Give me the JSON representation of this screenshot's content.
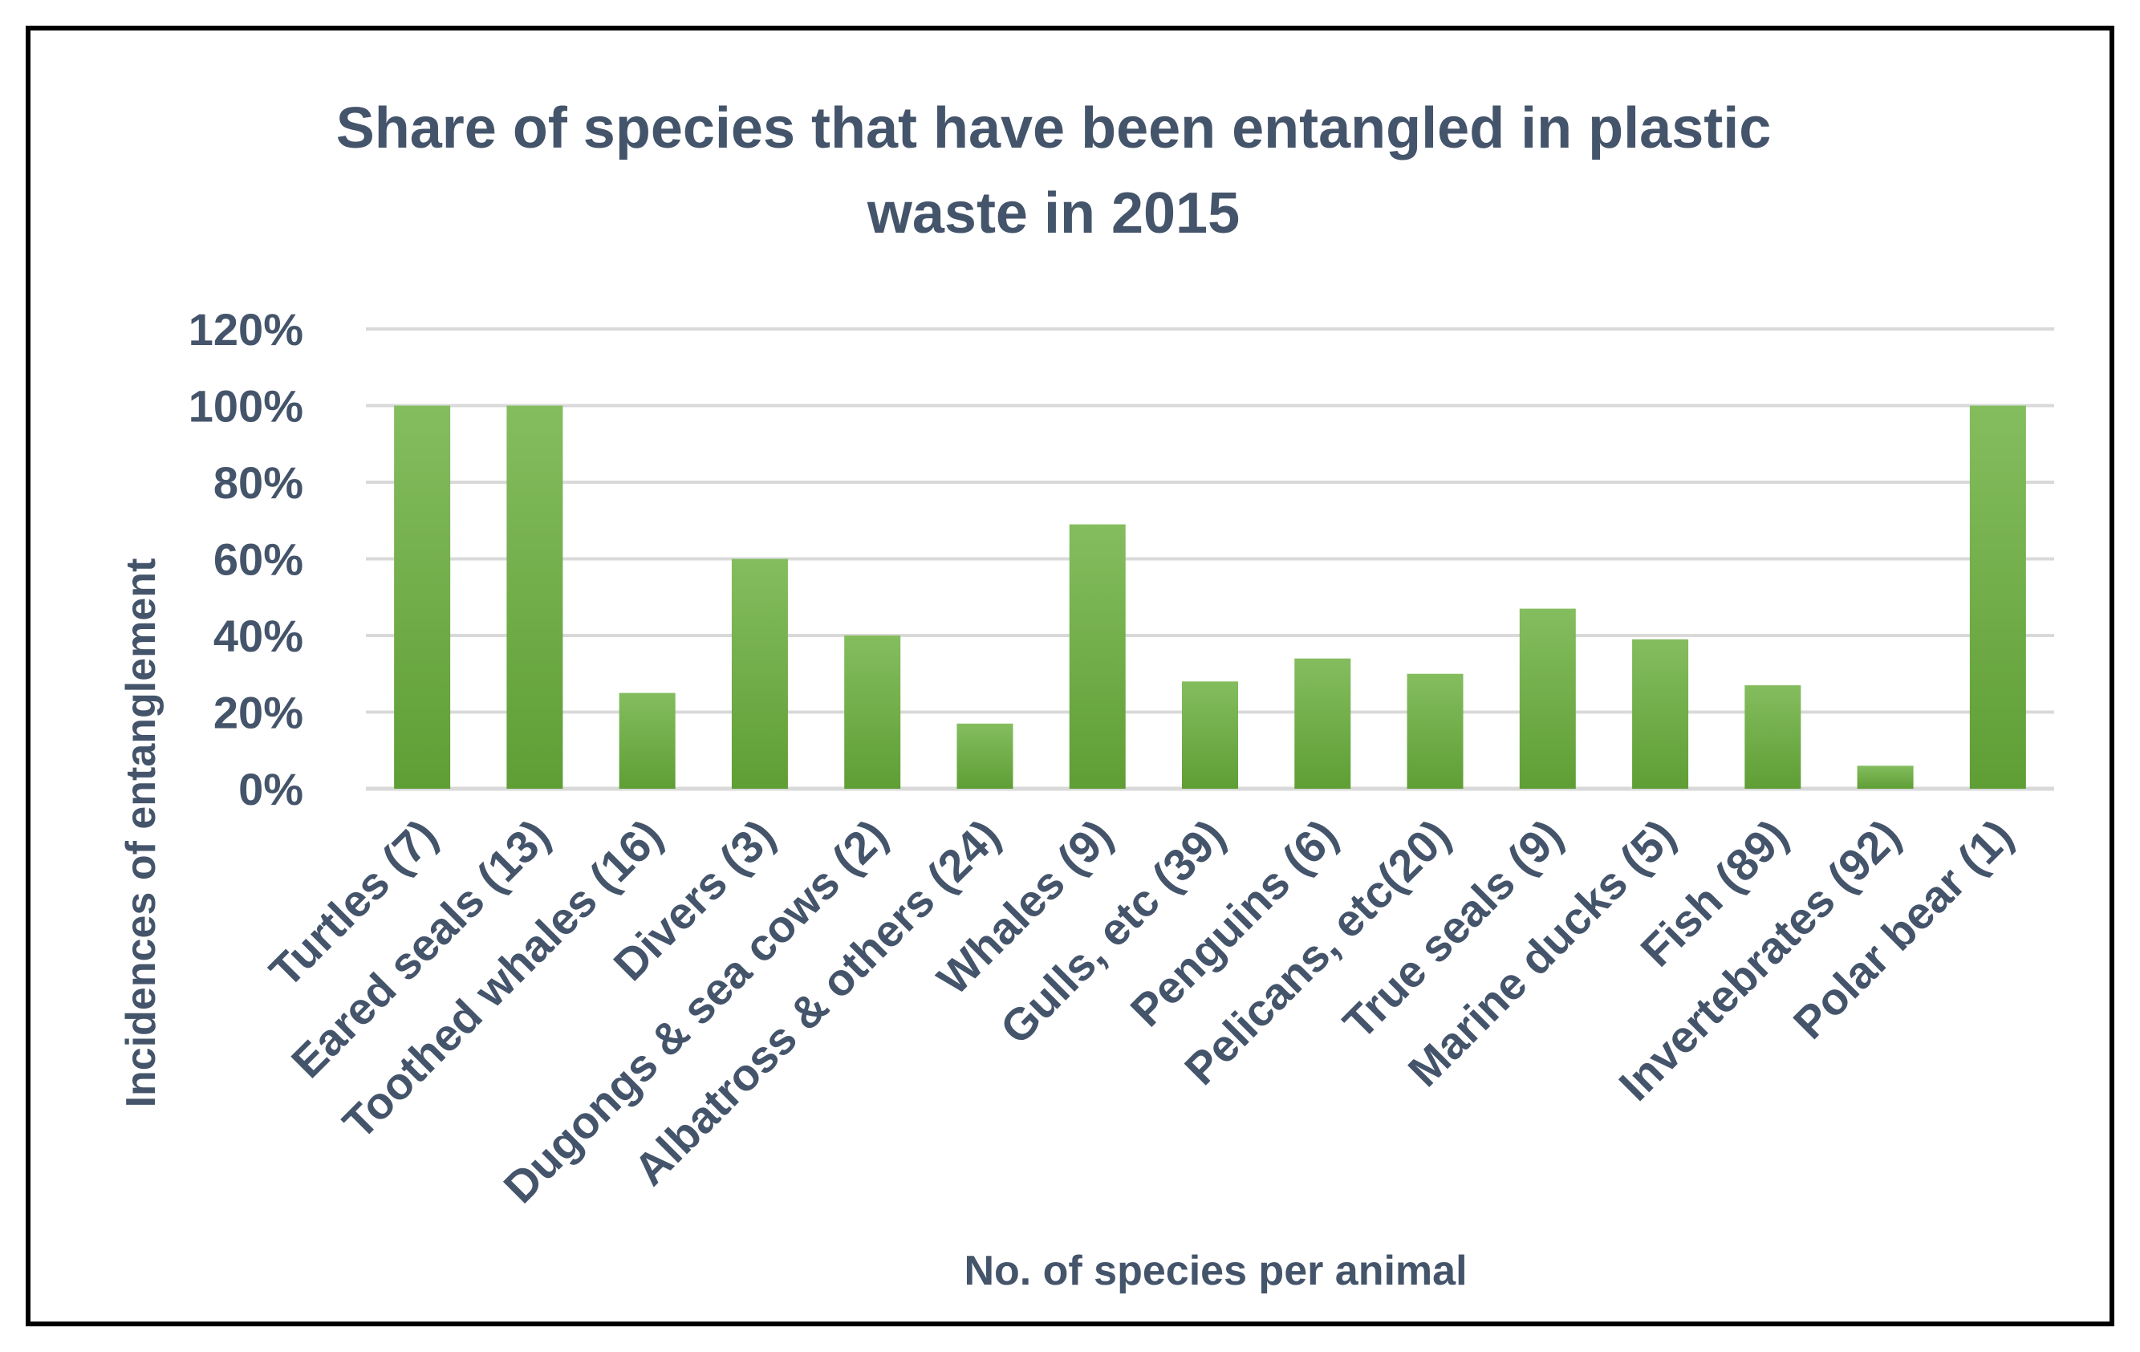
{
  "chart_data": {
    "type": "bar",
    "title": "Share of species that have been entangled in plastic waste in 2015",
    "title_lines": [
      "Share of species that have been entangled in plastic",
      "waste in 2015"
    ],
    "xlabel": "No. of species per animal",
    "ylabel": "Incidences of entanglement",
    "ylim": [
      0,
      120
    ],
    "yticks": [
      0,
      20,
      40,
      60,
      80,
      100,
      120
    ],
    "ytick_labels": [
      "0%",
      "20%",
      "40%",
      "60%",
      "80%",
      "100%",
      "120%"
    ],
    "grid": true,
    "legend": "none",
    "categories": [
      "Turtles (7)",
      "Eared seals (13)",
      "Toothed whales (16)",
      "Divers (3)",
      "Dugongs & sea cows (2)",
      "Albatross & others (24)",
      "Whales (9)",
      "Gulls, etc (39)",
      "Penguins (6)",
      "Pelicans, etc(20)",
      "True seals (9)",
      "Marine ducks (5)",
      "Fish (89)",
      "Invertebrates (92)",
      "Polar bear (1)"
    ],
    "values": [
      100,
      100,
      25,
      60,
      40,
      17,
      69,
      28,
      34,
      30,
      47,
      39,
      27,
      6,
      100
    ],
    "bar_color_top": "#84bd5e",
    "bar_color_bottom": "#5f9e35"
  }
}
